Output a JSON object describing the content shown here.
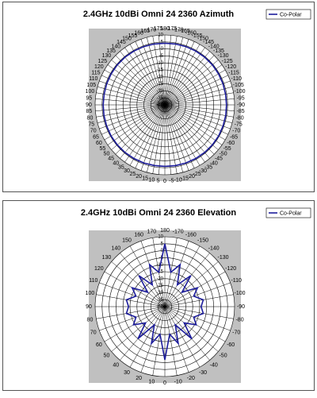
{
  "chart_data": [
    {
      "type": "polar",
      "title": "2.4GHz 10dBi Omni 24 2360 Azimuth",
      "theta_ticks": [
        0,
        5,
        10,
        15,
        20,
        25,
        30,
        35,
        40,
        45,
        50,
        55,
        60,
        65,
        70,
        75,
        80,
        85,
        90,
        95,
        100,
        105,
        110,
        115,
        120,
        125,
        130,
        135,
        140,
        145,
        150,
        155,
        160,
        165,
        170,
        175,
        180,
        -175,
        -170,
        -165,
        -160,
        -155,
        -150,
        -145,
        -140,
        -135,
        -130,
        -125,
        -120,
        -115,
        -110,
        -105,
        -100,
        -95,
        -90,
        -85,
        -80,
        -75,
        -70,
        -65,
        -60,
        -55,
        -50,
        -45,
        -40,
        -35,
        -30,
        -25,
        -20,
        -15,
        -10,
        -5
      ],
      "rlim": [
        -40,
        10
      ],
      "rticks": [
        10,
        5,
        0,
        -5,
        -10,
        -15,
        -20,
        -25,
        -30,
        -35,
        -40
      ],
      "theta": [
        0,
        10,
        20,
        30,
        40,
        50,
        60,
        70,
        80,
        90,
        100,
        110,
        120,
        130,
        140,
        150,
        160,
        170,
        180,
        -170,
        -160,
        -150,
        -140,
        -130,
        -120,
        -110,
        -100,
        -90,
        -80,
        -70,
        -60,
        -50,
        -40,
        -30,
        -20,
        -10
      ],
      "series": [
        {
          "name": "Co-Polar",
          "color": "#1c1c9c",
          "values": [
            4,
            4,
            4.2,
            4.3,
            4.4,
            4.5,
            4.5,
            4.4,
            4.3,
            4.2,
            4.2,
            4.3,
            4.4,
            4.5,
            4.5,
            4.4,
            4.3,
            4.2,
            4.1,
            4.2,
            4.3,
            4.4,
            4.5,
            4.5,
            4.4,
            4.3,
            4.2,
            4.2,
            4.3,
            4.4,
            4.5,
            4.5,
            4.4,
            4.3,
            4.2,
            4.1
          ]
        }
      ],
      "legend": "top-right"
    },
    {
      "type": "polar",
      "title": "2.4GHz 10dBi Omni 24 2360 Elevation",
      "theta_ticks": [
        0,
        10,
        20,
        30,
        40,
        50,
        60,
        70,
        80,
        90,
        100,
        110,
        120,
        130,
        140,
        150,
        160,
        170,
        180,
        -170,
        -160,
        -150,
        -140,
        -130,
        -120,
        -110,
        -100,
        -90,
        -80,
        -70,
        -60,
        -50,
        -40,
        -30,
        -20,
        -10
      ],
      "rlim": [
        -40,
        10
      ],
      "rticks": [
        10,
        5,
        0,
        -5,
        -10,
        -15,
        -20,
        -25,
        -30,
        -35,
        -40
      ],
      "theta": [
        0,
        10,
        20,
        30,
        40,
        50,
        60,
        70,
        80,
        90,
        100,
        110,
        120,
        130,
        140,
        150,
        160,
        170,
        180,
        -170,
        -160,
        -150,
        -140,
        -130,
        -120,
        -110,
        -100,
        -90,
        -80,
        -70,
        -60,
        -50,
        -40,
        -30,
        -20,
        -10
      ],
      "series": [
        {
          "name": "Co-Polar",
          "color": "#1c1c9c",
          "values": [
            -2,
            -20,
            -12,
            -25,
            -10,
            -22,
            -14,
            -18,
            -12,
            -14,
            -12,
            -18,
            -13,
            -24,
            -11,
            -22,
            -8,
            -15,
            5,
            -15,
            -8,
            -22,
            -11,
            -24,
            -13,
            -18,
            -12,
            -14,
            -12,
            -18,
            -14,
            -22,
            -10,
            -25,
            -12,
            -20
          ]
        }
      ],
      "legend": "top-right"
    }
  ]
}
